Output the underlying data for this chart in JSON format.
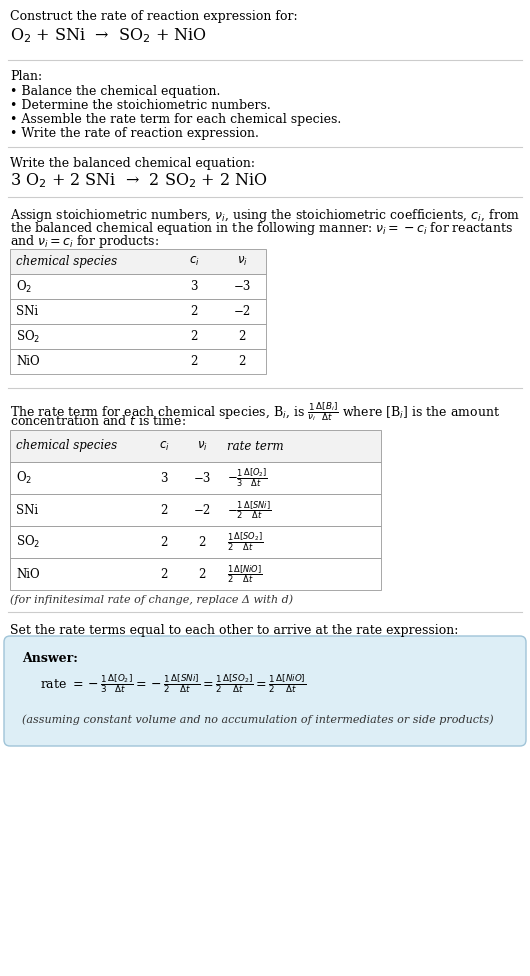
{
  "bg_color": "#ffffff",
  "text_color": "#000000",
  "section1_title": "Construct the rate of reaction expression for:",
  "section1_reaction": "O$_2$ + SNi  →  SO$_2$ + NiO",
  "plan_title": "Plan:",
  "plan_items": [
    "• Balance the chemical equation.",
    "• Determine the stoichiometric numbers.",
    "• Assemble the rate term for each chemical species.",
    "• Write the rate of reaction expression."
  ],
  "balanced_title": "Write the balanced chemical equation:",
  "balanced_eq": "3 O$_2$ + 2 SNi  →  2 SO$_2$ + 2 NiO",
  "stoich_intro_1": "Assign stoichiometric numbers, $\\nu_i$, using the stoichiometric coefficients, $c_i$, from",
  "stoich_intro_2": "the balanced chemical equation in the following manner: $\\nu_i = -c_i$ for reactants",
  "stoich_intro_3": "and $\\nu_i = c_i$ for products:",
  "table1_headers": [
    "chemical species",
    "$c_i$",
    "$\\nu_i$"
  ],
  "table1_data": [
    [
      "O$_2$",
      "3",
      "−3"
    ],
    [
      "SNi",
      "2",
      "−2"
    ],
    [
      "SO$_2$",
      "2",
      "2"
    ],
    [
      "NiO",
      "2",
      "2"
    ]
  ],
  "rate_intro_1": "The rate term for each chemical species, B$_i$, is $\\frac{1}{\\nu_i}\\frac{\\Delta[B_i]}{\\Delta t}$ where [B$_i$] is the amount",
  "rate_intro_2": "concentration and $t$ is time:",
  "table2_headers": [
    "chemical species",
    "$c_i$",
    "$\\nu_i$",
    "rate term"
  ],
  "table2_data": [
    [
      "O$_2$",
      "3",
      "−3",
      "$-\\frac{1}{3}\\frac{\\Delta[O_2]}{\\Delta t}$"
    ],
    [
      "SNi",
      "2",
      "−2",
      "$-\\frac{1}{2}\\frac{\\Delta[SNi]}{\\Delta t}$"
    ],
    [
      "SO$_2$",
      "2",
      "2",
      "$\\frac{1}{2}\\frac{\\Delta[SO_2]}{\\Delta t}$"
    ],
    [
      "NiO",
      "2",
      "2",
      "$\\frac{1}{2}\\frac{\\Delta[NiO]}{\\Delta t}$"
    ]
  ],
  "infinitesimal_note": "(for infinitesimal rate of change, replace Δ with d)",
  "set_equal_title": "Set the rate terms equal to each other to arrive at the rate expression:",
  "answer_label": "Answer:",
  "answer_eq_1": "rate $= -\\frac{1}{3}\\frac{\\Delta[O_2]}{\\Delta t} = -\\frac{1}{2}\\frac{\\Delta[SNi]}{\\Delta t} = \\frac{1}{2}\\frac{\\Delta[SO_2]}{\\Delta t} = \\frac{1}{2}\\frac{\\Delta[NiO]}{\\Delta t}$",
  "answer_note": "(assuming constant volume and no accumulation of intermediates or side products)",
  "answer_box_color": "#ddeef6",
  "answer_box_border": "#a0c4d8",
  "table_border_color": "#999999",
  "table_header_bg": "#f2f2f2",
  "divider_color": "#cccccc"
}
